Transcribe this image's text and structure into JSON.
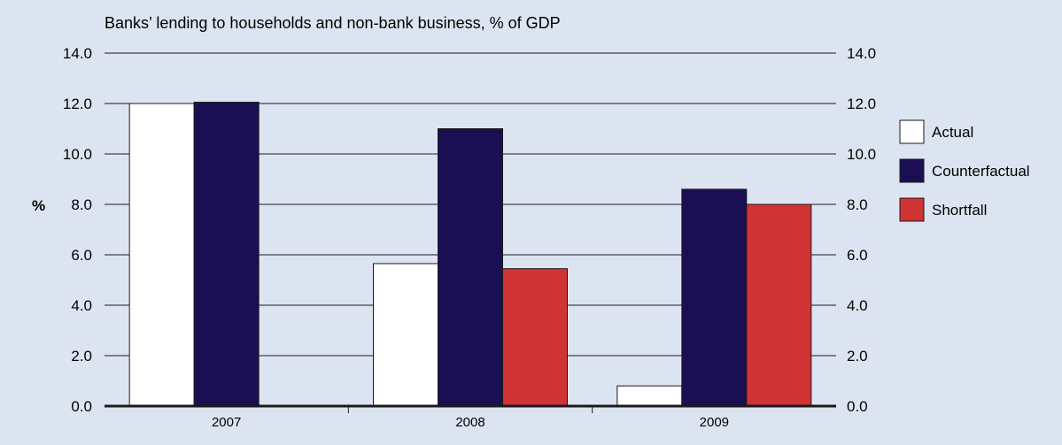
{
  "chart_data": {
    "type": "bar",
    "subtitle": "Banks’ lending to households and non-bank business, % of GDP",
    "ylabel": "%",
    "categories": [
      "2007",
      "2008",
      "2009"
    ],
    "ylim": [
      0,
      14
    ],
    "yticks": [
      "0.0",
      "2.0",
      "4.0",
      "6.0",
      "8.0",
      "10.0",
      "12.0",
      "14.0"
    ],
    "grid": true,
    "legend_position": "right",
    "series": [
      {
        "name": "Actual",
        "color": "#ffffff",
        "values": [
          12.0,
          5.65,
          0.8
        ]
      },
      {
        "name": "Counterfactual",
        "color": "#1b0f54",
        "values": [
          12.05,
          11.0,
          8.6
        ]
      },
      {
        "name": "Shortfall",
        "color": "#d03333",
        "values": [
          null,
          5.45,
          8.0
        ]
      }
    ]
  }
}
